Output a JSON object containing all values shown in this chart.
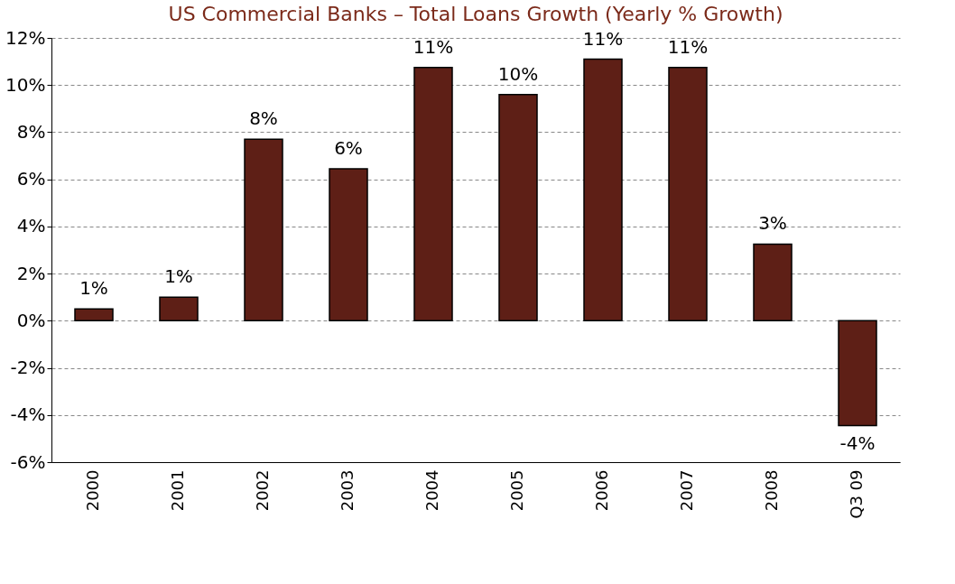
{
  "chart_data": {
    "type": "bar",
    "title": "US Commercial Banks – Total Loans Growth (Yearly % Growth)",
    "categories": [
      "2000",
      "2001",
      "2002",
      "2003",
      "2004",
      "2005",
      "2006",
      "2007",
      "2008",
      "Q3 09"
    ],
    "series": [
      {
        "color": "#5e1f16",
        "values": [
          0.5,
          1.0,
          7.7,
          6.45,
          10.75,
          9.6,
          11.1,
          10.75,
          3.25,
          -4.45
        ],
        "value_labels": [
          "1%",
          "1%",
          "8%",
          "6%",
          "11%",
          "10%",
          "11%",
          "11%",
          "3%",
          "-4%"
        ]
      }
    ],
    "ylim": [
      -6,
      12
    ],
    "yticks": [
      {
        "value": -6,
        "label": "-6%"
      },
      {
        "value": -4,
        "label": "-4%"
      },
      {
        "value": -2,
        "label": "-2%"
      },
      {
        "value": 0,
        "label": "0%"
      },
      {
        "value": 2,
        "label": "2%"
      },
      {
        "value": 4,
        "label": "4%"
      },
      {
        "value": 6,
        "label": "6%"
      },
      {
        "value": 8,
        "label": "8%"
      },
      {
        "value": 10,
        "label": "10%"
      },
      {
        "value": 12,
        "label": "12%"
      }
    ],
    "grid": "y",
    "line_style": "dashed"
  }
}
